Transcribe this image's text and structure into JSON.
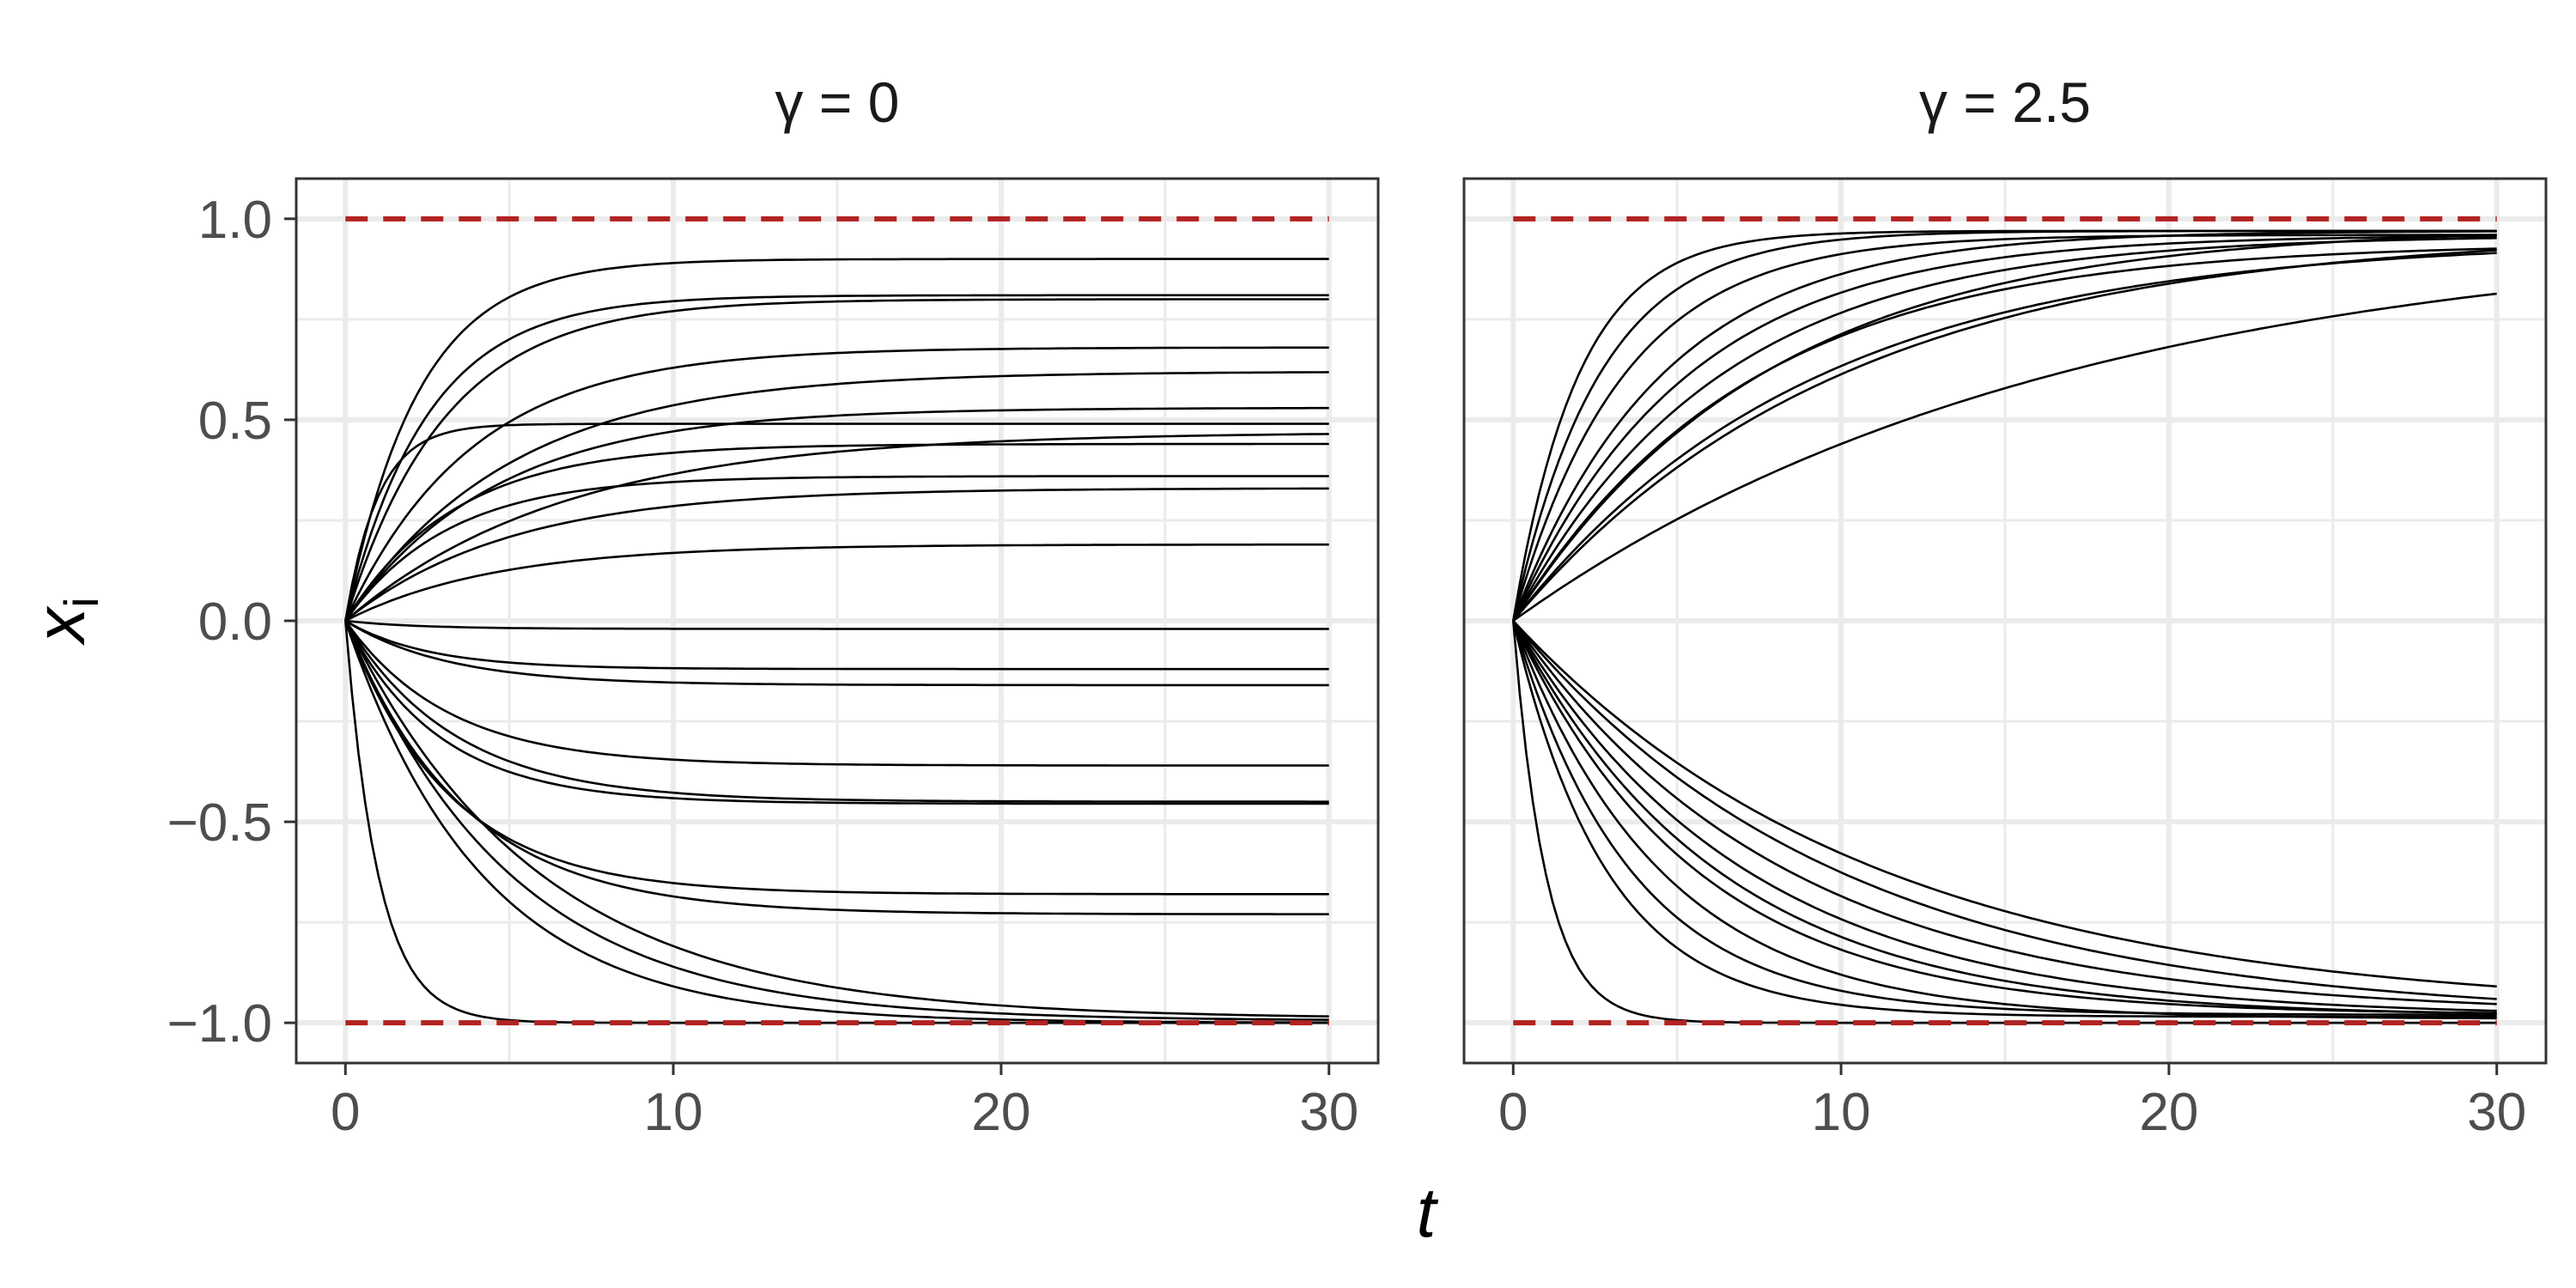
{
  "chart_data": {
    "type": "line",
    "xlabel": "t",
    "ylabel": "x",
    "ylabel_subscript": "i",
    "xlim": [
      -1.5,
      31.5
    ],
    "ylim": [
      -1.1,
      1.1
    ],
    "xticks": [
      0,
      10,
      20,
      30
    ],
    "xtick_labels": [
      "0",
      "10",
      "20",
      "30"
    ],
    "yticks": [
      -1.0,
      -0.5,
      0.0,
      0.5,
      1.0
    ],
    "ytick_labels": [
      "−1.0",
      "−0.5",
      "0.0",
      "0.5",
      "1.0"
    ],
    "grid": true,
    "reference_lines": {
      "values": [
        1.0,
        -1.0
      ],
      "color": "#b22222",
      "style": "dashed"
    },
    "line_color": "#000000",
    "panels": [
      {
        "strip_label": "γ = 0",
        "series": [
          {
            "final": 0.9,
            "rate": 0.45
          },
          {
            "final": 0.81,
            "rate": 0.4
          },
          {
            "final": 0.8,
            "rate": 0.33
          },
          {
            "final": 0.68,
            "rate": 0.26
          },
          {
            "final": 0.62,
            "rate": 0.2
          },
          {
            "final": 0.53,
            "rate": 0.22
          },
          {
            "final": 0.49,
            "rate": 1.0
          },
          {
            "final": 0.47,
            "rate": 0.15
          },
          {
            "final": 0.44,
            "rate": 0.3
          },
          {
            "final": 0.36,
            "rate": 0.32
          },
          {
            "final": 0.33,
            "rate": 0.2
          },
          {
            "final": 0.19,
            "rate": 0.22
          },
          {
            "final": -0.02,
            "rate": 0.45
          },
          {
            "final": -0.12,
            "rate": 0.4
          },
          {
            "final": -0.16,
            "rate": 0.32
          },
          {
            "final": -0.36,
            "rate": 0.32
          },
          {
            "final": -0.45,
            "rate": 0.3
          },
          {
            "final": -0.455,
            "rate": 0.35
          },
          {
            "final": -0.68,
            "rate": 0.32
          },
          {
            "final": -0.73,
            "rate": 0.28
          },
          {
            "final": -1.0,
            "rate": 1.0
          },
          {
            "final": -0.995,
            "rate": 0.2
          },
          {
            "final": -0.99,
            "rate": 0.17
          },
          {
            "final": -1.0,
            "rate": 0.24
          }
        ]
      },
      {
        "strip_label": "γ = 2.5",
        "series": [
          {
            "final": 0.97,
            "rate": 0.38
          },
          {
            "final": 0.96,
            "rate": 0.3
          },
          {
            "final": 0.97,
            "rate": 0.22
          },
          {
            "final": 0.96,
            "rate": 0.16
          },
          {
            "final": 0.98,
            "rate": 0.13
          },
          {
            "final": 0.95,
            "rate": 0.11
          },
          {
            "final": 0.97,
            "rate": 0.1
          },
          {
            "final": 0.94,
            "rate": 0.14
          },
          {
            "final": 0.96,
            "rate": 0.19
          },
          {
            "final": 0.97,
            "rate": 0.5
          },
          {
            "final": 0.975,
            "rate": 0.06
          },
          {
            "final": -0.985,
            "rate": 0.35
          },
          {
            "final": -0.98,
            "rate": 0.28
          },
          {
            "final": -0.99,
            "rate": 0.22
          },
          {
            "final": -0.98,
            "rate": 0.18
          },
          {
            "final": -0.985,
            "rate": 0.14
          },
          {
            "final": -0.98,
            "rate": 0.12
          },
          {
            "final": -0.99,
            "rate": 0.1
          },
          {
            "final": -1.0,
            "rate": 1.0
          },
          {
            "final": -0.985,
            "rate": 0.16
          },
          {
            "final": -0.975,
            "rate": 0.09
          }
        ]
      }
    ]
  }
}
